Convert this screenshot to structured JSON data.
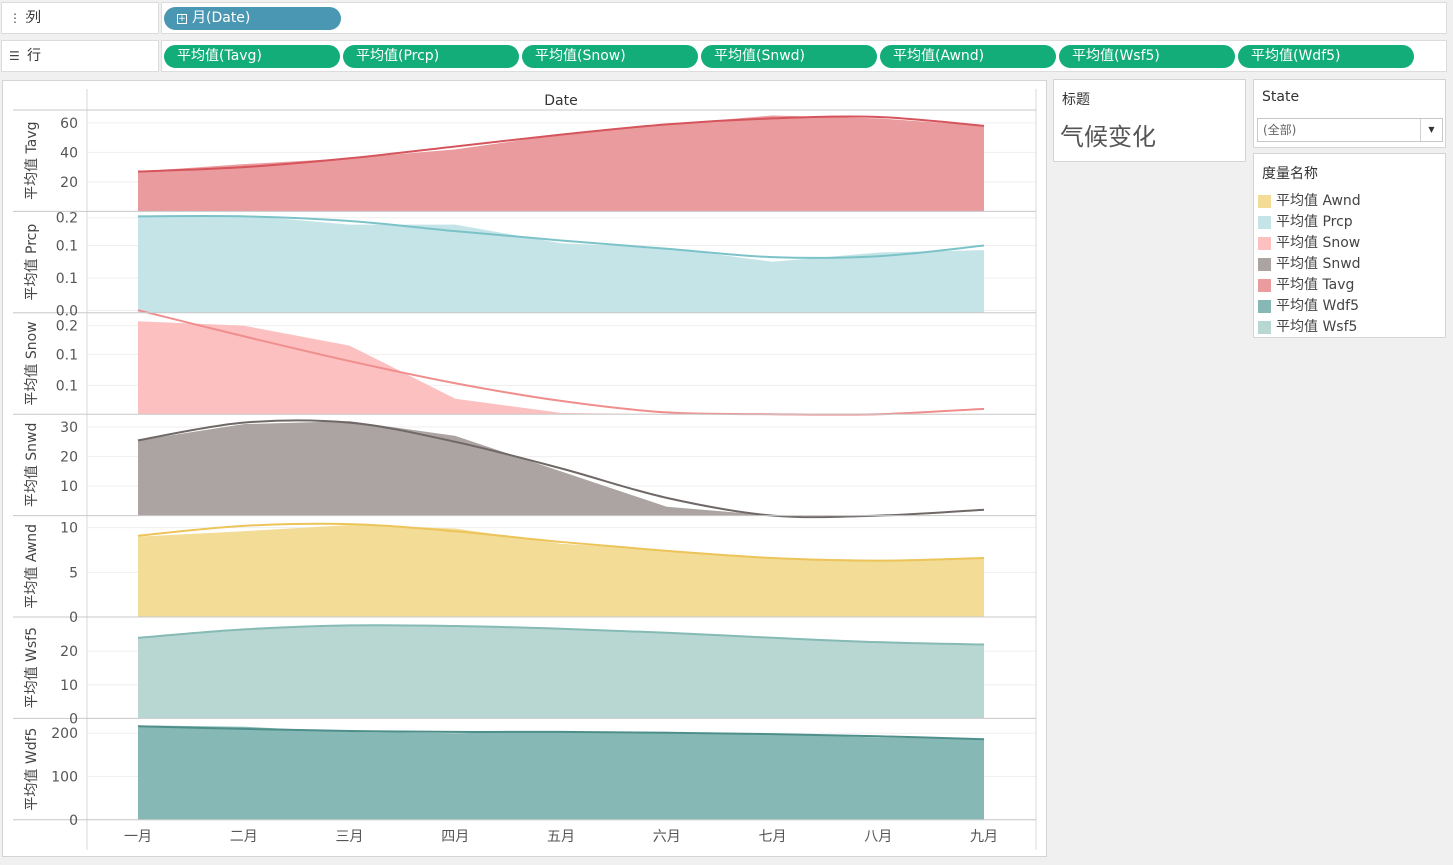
{
  "shelves": {
    "columns": {
      "label": "列",
      "icon": "columns-icon",
      "pills": [
        {
          "label": "月(Date)"
        }
      ]
    },
    "rows": {
      "label": "行",
      "icon": "rows-icon",
      "pills": [
        {
          "label": "平均值(Tavg)"
        },
        {
          "label": "平均值(Prcp)"
        },
        {
          "label": "平均值(Snow)"
        },
        {
          "label": "平均值(Snwd)"
        },
        {
          "label": "平均值(Awnd)"
        },
        {
          "label": "平均值(Wsf5)"
        },
        {
          "label": "平均值(Wdf5)"
        }
      ]
    }
  },
  "title_card": {
    "header": "标题",
    "text": "气候变化"
  },
  "filter": {
    "header": "State",
    "selected": "(全部)"
  },
  "legend": {
    "header": "度量名称",
    "items": [
      {
        "label": "平均值 Awnd",
        "color": "#f2dc96"
      },
      {
        "label": "平均值 Prcp",
        "color": "#c4e4e8"
      },
      {
        "label": "平均值 Snow",
        "color": "#fcc0c0"
      },
      {
        "label": "平均值 Snwd",
        "color": "#aba4a2"
      },
      {
        "label": "平均值 Tavg",
        "color": "#ea9b9e"
      },
      {
        "label": "平均值 Wdf5",
        "color": "#86b9b5"
      },
      {
        "label": "平均值 Wsf5",
        "color": "#b8d7d3"
      }
    ]
  },
  "chart_data": {
    "type": "area",
    "title": "Date",
    "categories": [
      "一月",
      "二月",
      "三月",
      "四月",
      "五月",
      "六月",
      "七月",
      "八月",
      "九月"
    ],
    "trend_lines": true,
    "grid": true,
    "panels": [
      {
        "name": "平均值 Tavg",
        "ylabel": "平均值 Tavg",
        "ylim": [
          0,
          66
        ],
        "ticks": [
          {
            "v": 20,
            "label": "20"
          },
          {
            "v": 40,
            "label": "40"
          },
          {
            "v": 60,
            "label": "60"
          }
        ],
        "values": [
          27,
          32,
          36,
          42,
          52,
          59,
          65,
          63,
          58
        ],
        "trend": [
          27,
          30,
          36,
          44,
          52,
          59,
          63,
          64,
          58
        ],
        "fill": "#ea9b9e",
        "line": "#d6545c"
      },
      {
        "name": "平均值 Prcp",
        "ylabel": "平均值 Prcp",
        "ylim": [
          0,
          0.21
        ],
        "ticks": [
          {
            "v": 0.005,
            "label": "0.0"
          },
          {
            "v": 0.075,
            "label": "0.1"
          },
          {
            "v": 0.145,
            "label": "0.1"
          },
          {
            "v": 0.205,
            "label": "0.2"
          }
        ],
        "values": [
          0.21,
          0.21,
          0.19,
          0.19,
          0.15,
          0.14,
          0.11,
          0.13,
          0.135
        ],
        "trend": [
          0.208,
          0.208,
          0.198,
          0.176,
          0.156,
          0.138,
          0.12,
          0.122,
          0.145
        ],
        "fill": "#c4e4e8",
        "line": "#7cc3c9"
      },
      {
        "name": "平均值 Snow",
        "ylabel": "平均值 Snow",
        "ylim": [
          0,
          0.22
        ],
        "ticks": [
          {
            "v": 0.065,
            "label": "0.1"
          },
          {
            "v": 0.135,
            "label": "0.1"
          },
          {
            "v": 0.2,
            "label": "0.2"
          }
        ],
        "values": [
          0.21,
          0.2,
          0.155,
          0.035,
          0.003,
          0.0,
          0.0,
          0.0,
          0.0
        ],
        "trend": [
          0.235,
          0.176,
          0.12,
          0.07,
          0.03,
          0.004,
          0.0,
          0.0,
          0.012
        ],
        "fill": "#fcc0c0",
        "line": "#f08e8e"
      },
      {
        "name": "平均值 Snwd",
        "ylabel": "平均值 Snwd",
        "ylim": [
          0,
          33
        ],
        "ticks": [
          {
            "v": 10,
            "label": "10"
          },
          {
            "v": 20,
            "label": "20"
          },
          {
            "v": 30,
            "label": "30"
          }
        ],
        "values": [
          25.5,
          31,
          32,
          27,
          15,
          3,
          0,
          0,
          0
        ],
        "trend": [
          25.5,
          31.5,
          31.5,
          25,
          16,
          6,
          0,
          0,
          2
        ],
        "fill": "#aba4a2",
        "line": "#6f6866"
      },
      {
        "name": "平均值 Awnd",
        "ylabel": "平均值 Awnd",
        "ylim": [
          0,
          10.9
        ],
        "ticks": [
          {
            "v": 0,
            "label": "0"
          },
          {
            "v": 5,
            "label": "5"
          },
          {
            "v": 10,
            "label": "10"
          }
        ],
        "values": [
          9.0,
          9.6,
          10.3,
          9.9,
          8.2,
          7.5,
          6.6,
          6.4,
          6.5
        ],
        "trend": [
          9.1,
          10.2,
          10.4,
          9.6,
          8.4,
          7.4,
          6.6,
          6.3,
          6.6
        ],
        "fill": "#f2dc96",
        "line": "#ecc45a"
      },
      {
        "name": "平均值 Wsf5",
        "ylabel": "平均值 Wsf5",
        "ylim": [
          0,
          29
        ],
        "ticks": [
          {
            "v": 0,
            "label": "0"
          },
          {
            "v": 10,
            "label": "10"
          },
          {
            "v": 20,
            "label": "20"
          }
        ],
        "values": [
          24,
          26.5,
          27.5,
          27.5,
          26.5,
          25.5,
          24,
          22.5,
          22
        ],
        "trend": [
          24,
          26.5,
          27.7,
          27.5,
          26.7,
          25.5,
          24,
          22.7,
          22
        ],
        "fill": "#b8d7d3",
        "line": "#86bab4"
      },
      {
        "name": "平均值 Wdf5",
        "ylabel": "平均值 Wdf5",
        "ylim": [
          0,
          225
        ],
        "ticks": [
          {
            "v": 0,
            "label": "0"
          },
          {
            "v": 100,
            "label": "100"
          },
          {
            "v": 200,
            "label": "200"
          }
        ],
        "values": [
          218,
          215,
          203,
          200,
          204,
          203,
          198,
          190,
          187
        ],
        "trend": [
          216,
          210,
          205,
          203,
          203,
          201,
          198,
          193,
          186
        ],
        "fill": "#86b9b5",
        "line": "#4f8f8b"
      }
    ]
  }
}
